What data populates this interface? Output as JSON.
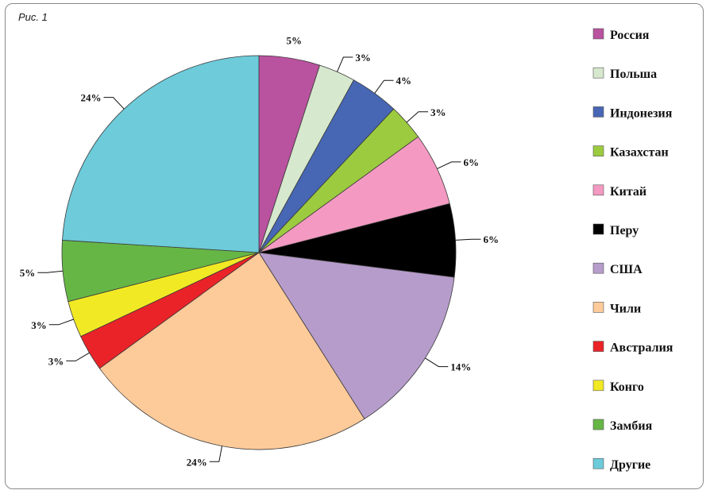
{
  "figure_label": "Рис. 1",
  "chart_data": {
    "type": "pie",
    "start": "12 o'clock",
    "direction": "clockwise",
    "legend_position": "right",
    "slices": [
      {
        "name": "Россия",
        "value": 5,
        "label": "5%",
        "color": "#b9529f"
      },
      {
        "name": "Польша",
        "value": 3,
        "label": "3%",
        "color": "#d6e8cd"
      },
      {
        "name": "Индонезия",
        "value": 4,
        "label": "4%",
        "color": "#4766b4"
      },
      {
        "name": "Казахстан",
        "value": 3,
        "label": "3%",
        "color": "#9ccb3f"
      },
      {
        "name": "Китай",
        "value": 6,
        "label": "6%",
        "color": "#f49ac2"
      },
      {
        "name": "Перу",
        "value": 6,
        "label": "6%",
        "color": "#000000"
      },
      {
        "name": "США",
        "value": 14,
        "label": "14%",
        "color": "#b69ccb"
      },
      {
        "name": "Чили",
        "value": 24,
        "label": "24%",
        "color": "#fdca9a"
      },
      {
        "name": "Австралия",
        "value": 3,
        "label": "3%",
        "color": "#ea2328"
      },
      {
        "name": "Конго",
        "value": 3,
        "label": "3%",
        "color": "#f2e925"
      },
      {
        "name": "Замбия",
        "value": 5,
        "label": "5%",
        "color": "#66b646"
      },
      {
        "name": "Другие",
        "value": 24,
        "label": "24%",
        "color": "#6dcbda"
      }
    ]
  }
}
